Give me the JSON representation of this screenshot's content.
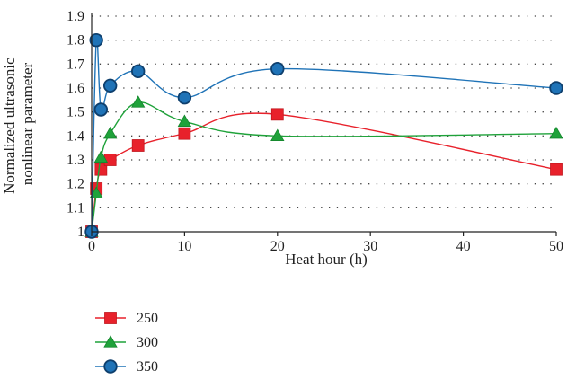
{
  "chart_data": {
    "type": "line",
    "title": "",
    "xlabel": "Heat hour (h)",
    "ylabel_lines": [
      "Normalized ultrasonic",
      "nonlinear parameter"
    ],
    "xlim": [
      0,
      50
    ],
    "ylim": [
      1,
      1.9
    ],
    "xticks": [
      0,
      10,
      20,
      30,
      40,
      50
    ],
    "yticks": [
      1,
      1.1,
      1.2,
      1.3,
      1.4,
      1.5,
      1.6,
      1.7,
      1.8,
      1.9
    ],
    "grid": "horizontal-dotted",
    "legend_position": "bottom-left",
    "series": [
      {
        "name": "250",
        "color": "#e8212b",
        "marker": "square",
        "x": [
          0,
          0.5,
          1,
          2,
          5,
          10,
          20,
          50
        ],
        "y": [
          1.0,
          1.18,
          1.26,
          1.3,
          1.36,
          1.41,
          1.49,
          1.26
        ]
      },
      {
        "name": "300",
        "color": "#1fa23a",
        "marker": "triangle",
        "x": [
          0,
          0.5,
          1,
          2,
          5,
          10,
          20,
          50
        ],
        "y": [
          1.0,
          1.16,
          1.31,
          1.41,
          1.54,
          1.46,
          1.4,
          1.41
        ]
      },
      {
        "name": "350",
        "color": "#1f73b7",
        "marker": "circle",
        "x": [
          0,
          0.5,
          1,
          2,
          5,
          10,
          20,
          50
        ],
        "y": [
          1.0,
          1.8,
          1.51,
          1.61,
          1.67,
          1.56,
          1.68,
          1.6
        ]
      }
    ]
  }
}
